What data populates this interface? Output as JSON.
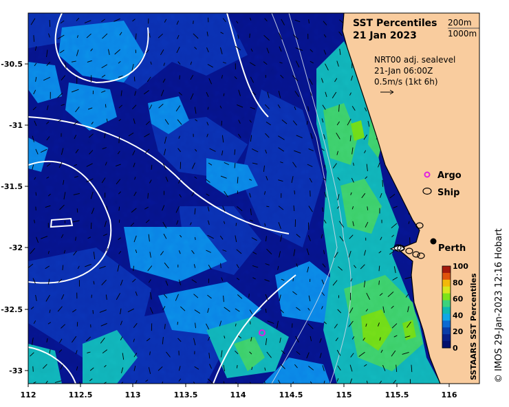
{
  "title": {
    "line1": "SST Percentiles",
    "line2": "21 Jan 2023"
  },
  "depth_legend": {
    "contour1": "200m",
    "contour2": "1000m"
  },
  "current_info": {
    "line1": "NRT00 adj. sealevel",
    "line2": "21-Jan 06:00Z",
    "line3": "0.5m/s (1kt 6h)"
  },
  "markers": {
    "argo": "Argo",
    "ship": "Ship",
    "city": "Perth"
  },
  "colorbar": {
    "title": "SSTAARS SST Percentiles",
    "ticks": [
      "100",
      "80",
      "60",
      "40",
      "20",
      "0"
    ],
    "colors": [
      "#a51a0c",
      "#e0530c",
      "#f2b90a",
      "#d8e61e",
      "#7de31a",
      "#3cd27c",
      "#0fb9b0",
      "#10a7e6",
      "#0c6ad2",
      "#0a3da8",
      "#081f86",
      "#04106c"
    ]
  },
  "axes": {
    "x_ticks": [
      "112",
      "112.5",
      "113",
      "113.5",
      "114",
      "114.5",
      "115",
      "115.5",
      "116"
    ],
    "y_ticks": [
      "-30.5",
      "-31",
      "-31.5",
      "-32",
      "-32.5",
      "-33"
    ]
  },
  "credit": "© IMOS 29-Jan-2023 12:16 Hobart",
  "colors": {
    "land": "#f9cc9e",
    "ocean_deep": "#05138a",
    "ocean_mid": "#0a2fb0",
    "ocean_light": "#0a84e6",
    "ocean_teal": "#10b2b8",
    "ocean_green": "#3ccf6a",
    "ocean_lime": "#6fdc18",
    "argo_marker": "#e11ee1"
  }
}
